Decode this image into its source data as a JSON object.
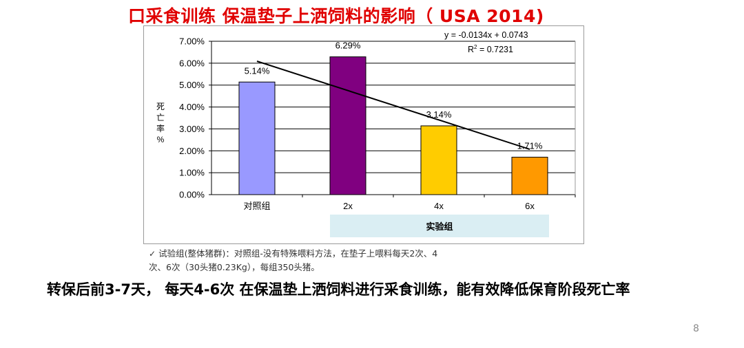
{
  "slide": {
    "title": "口采食训练 保温垫子上洒饲料的影响（ USA 2014)",
    "footnote_line1": "试验组(整体猪群)：对照组-没有特殊喂料方法，在垫子上喂料每天2次、4",
    "footnote_line2": "次、6次（30头猪0.23Kg），每组350头猪。",
    "conclusion": "转保后前3-7天， 每天4-6次 在保温垫上洒饲料进行采食训练，能有效降低保育阶段死亡率",
    "page_number": "8"
  },
  "chart_data": {
    "type": "bar",
    "categories": [
      "对照组",
      "2x",
      "4x",
      "6x"
    ],
    "values": [
      5.14,
      6.29,
      3.14,
      1.71
    ],
    "data_labels": [
      "5.14%",
      "6.29%",
      "3.14%",
      "1.71%"
    ],
    "bar_colors": [
      "#9999ff",
      "#800080",
      "#ffcc00",
      "#ff9900"
    ],
    "ylabel": "死亡率%",
    "ylim": [
      0,
      7
    ],
    "yticks": [
      "0.00%",
      "1.00%",
      "2.00%",
      "3.00%",
      "4.00%",
      "5.00%",
      "6.00%",
      "7.00%"
    ],
    "grid": true,
    "group_label": "实验组",
    "trendline": {
      "equation": "y = -0.0134x + 0.0743",
      "r_squared_prefix": "R",
      "r_squared_sup": "2",
      "r_squared_value": " = 0.7231",
      "slope": -0.0134,
      "intercept": 0.0743
    }
  }
}
